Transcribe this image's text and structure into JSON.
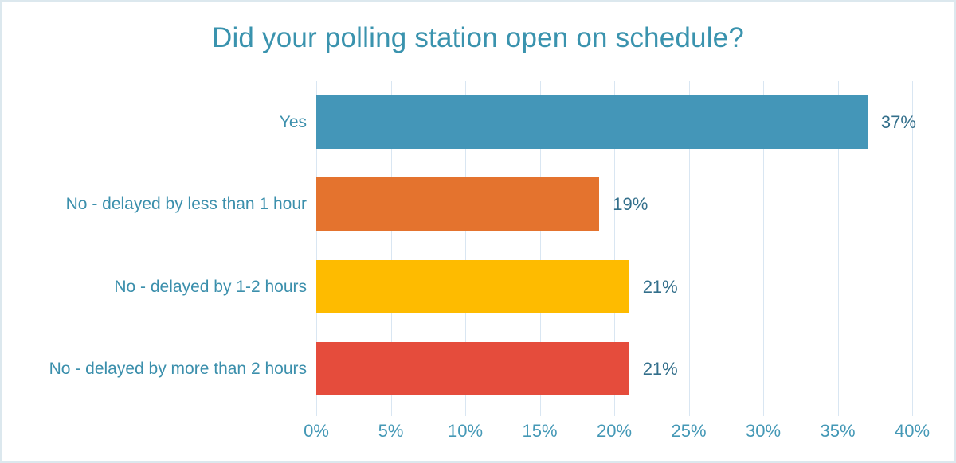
{
  "title": "Did your polling station open on schedule?",
  "chart_data": {
    "type": "bar",
    "orientation": "horizontal",
    "title": "Did your polling station open on schedule?",
    "categories": [
      "Yes",
      "No - delayed by less than 1 hour",
      "No - delayed by 1-2 hours",
      "No - delayed by more than 2 hours"
    ],
    "values": [
      37,
      19,
      21,
      21
    ],
    "value_labels": [
      "37%",
      "19%",
      "21%",
      "21%"
    ],
    "bar_colors": [
      "#4496b8",
      "#e4732e",
      "#febb00",
      "#e54c3c"
    ],
    "x_ticks": [
      "0%",
      "5%",
      "10%",
      "15%",
      "20%",
      "25%",
      "30%",
      "35%",
      "40%"
    ],
    "x_tick_values": [
      0,
      5,
      10,
      15,
      20,
      25,
      30,
      35,
      40
    ],
    "xlim": [
      0,
      40
    ],
    "grid": true,
    "legend": false,
    "xlabel": "",
    "ylabel": ""
  },
  "colors": {
    "title_text": "#3a93ae",
    "category_text": "#3b8fac",
    "value_text": "#336f8b",
    "axis_text": "#4498b6",
    "gridline": "#d9e6f2",
    "border": "#dce8ee",
    "background": "#ffffff"
  }
}
